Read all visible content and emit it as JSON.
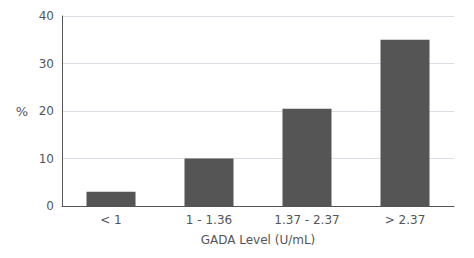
{
  "chart_data": {
    "type": "bar",
    "xlabel": "GADA Level (U/mL)",
    "ylabel": "%",
    "categories": [
      "< 1",
      "1 - 1.36",
      "1.37 - 2.37",
      "> 2.37"
    ],
    "values": [
      3,
      10,
      20.5,
      35
    ],
    "color": "#555555",
    "ylim": [
      0,
      40
    ],
    "yticks": [
      0,
      10,
      20,
      30,
      40
    ],
    "grid": true
  }
}
